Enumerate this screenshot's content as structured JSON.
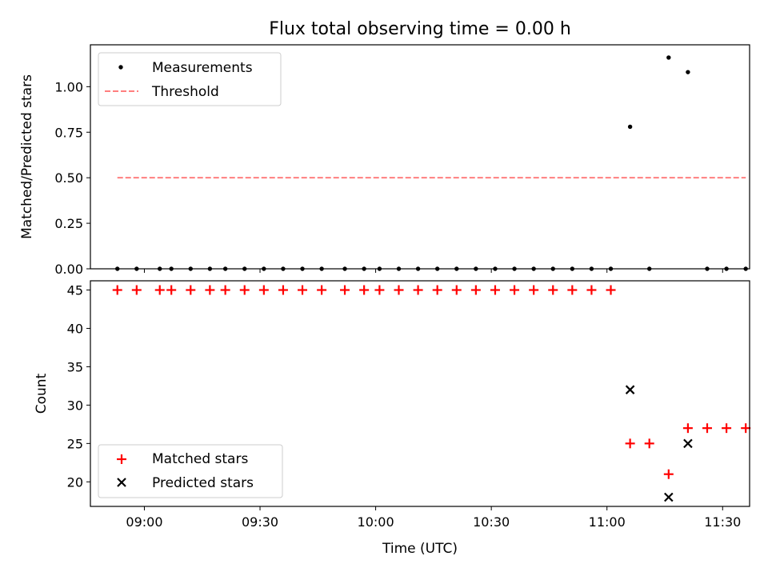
{
  "chart_data": [
    {
      "type": "scatter",
      "title": "Flux total observing time = 0.00 h",
      "xlabel": "",
      "ylabel": "Matched/Predicted stars",
      "xlim": [
        "08:46",
        "11:37"
      ],
      "ylim": [
        0,
        1.23
      ],
      "xticks": [
        "09:00",
        "09:30",
        "10:00",
        "10:30",
        "11:00",
        "11:30"
      ],
      "yticks": [
        "0.00",
        "0.25",
        "0.50",
        "0.75",
        "1.00"
      ],
      "legend_position": "upper-left",
      "series": [
        {
          "name": "Measurements",
          "marker": "dot",
          "color": "#000000",
          "points": [
            [
              "08:53",
              0
            ],
            [
              "08:58",
              0
            ],
            [
              "09:04",
              0
            ],
            [
              "09:07",
              0
            ],
            [
              "09:12",
              0
            ],
            [
              "09:17",
              0
            ],
            [
              "09:21",
              0
            ],
            [
              "09:26",
              0
            ],
            [
              "09:31",
              0
            ],
            [
              "09:36",
              0
            ],
            [
              "09:41",
              0
            ],
            [
              "09:46",
              0
            ],
            [
              "09:52",
              0
            ],
            [
              "09:57",
              0
            ],
            [
              "10:01",
              0
            ],
            [
              "10:06",
              0
            ],
            [
              "10:11",
              0
            ],
            [
              "10:16",
              0
            ],
            [
              "10:21",
              0
            ],
            [
              "10:26",
              0
            ],
            [
              "10:31",
              0
            ],
            [
              "10:36",
              0
            ],
            [
              "10:41",
              0
            ],
            [
              "10:46",
              0
            ],
            [
              "10:51",
              0
            ],
            [
              "10:56",
              0
            ],
            [
              "11:01",
              0
            ],
            [
              "11:06",
              0.78
            ],
            [
              "11:11",
              0
            ],
            [
              "11:16",
              1.16
            ],
            [
              "11:21",
              1.08
            ],
            [
              "11:26",
              0
            ],
            [
              "11:31",
              0
            ],
            [
              "11:36",
              0
            ]
          ]
        },
        {
          "name": "Threshold",
          "style": "dashed",
          "color": "#ff7f7f",
          "points": [
            [
              "08:53",
              0.5
            ],
            [
              "11:36",
              0.5
            ]
          ]
        }
      ]
    },
    {
      "type": "scatter",
      "title": "",
      "xlabel": "Time (UTC)",
      "ylabel": "Count",
      "xlim": [
        "08:46",
        "11:37"
      ],
      "ylim": [
        16.8,
        46.2
      ],
      "xticks": [
        "09:00",
        "09:30",
        "10:00",
        "10:30",
        "11:00",
        "11:30"
      ],
      "yticks": [
        "20",
        "25",
        "30",
        "35",
        "40",
        "45"
      ],
      "legend_position": "lower-left",
      "series": [
        {
          "name": "Matched stars",
          "marker": "plus",
          "color": "#ff0000",
          "points": [
            [
              "08:53",
              45
            ],
            [
              "08:58",
              45
            ],
            [
              "09:04",
              45
            ],
            [
              "09:07",
              45
            ],
            [
              "09:12",
              45
            ],
            [
              "09:17",
              45
            ],
            [
              "09:21",
              45
            ],
            [
              "09:26",
              45
            ],
            [
              "09:31",
              45
            ],
            [
              "09:36",
              45
            ],
            [
              "09:41",
              45
            ],
            [
              "09:46",
              45
            ],
            [
              "09:52",
              45
            ],
            [
              "09:57",
              45
            ],
            [
              "10:01",
              45
            ],
            [
              "10:06",
              45
            ],
            [
              "10:11",
              45
            ],
            [
              "10:16",
              45
            ],
            [
              "10:21",
              45
            ],
            [
              "10:26",
              45
            ],
            [
              "10:31",
              45
            ],
            [
              "10:36",
              45
            ],
            [
              "10:41",
              45
            ],
            [
              "10:46",
              45
            ],
            [
              "10:51",
              45
            ],
            [
              "10:56",
              45
            ],
            [
              "11:01",
              45
            ],
            [
              "11:06",
              25
            ],
            [
              "11:11",
              25
            ],
            [
              "11:16",
              21
            ],
            [
              "11:21",
              27
            ],
            [
              "11:26",
              27
            ],
            [
              "11:31",
              27
            ],
            [
              "11:36",
              27
            ]
          ]
        },
        {
          "name": "Predicted stars",
          "marker": "x",
          "color": "#000000",
          "points": [
            [
              "11:06",
              32
            ],
            [
              "11:16",
              18
            ],
            [
              "11:21",
              25
            ]
          ]
        }
      ]
    }
  ]
}
